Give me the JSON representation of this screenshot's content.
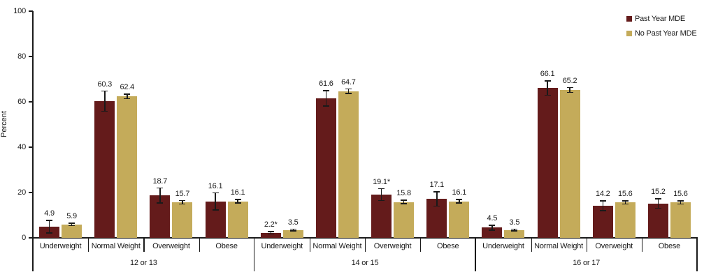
{
  "chart_data": {
    "type": "bar",
    "title": "",
    "ylabel": "Percent",
    "ylim": [
      0,
      100
    ],
    "yticks": [
      0,
      20,
      40,
      60,
      80,
      100
    ],
    "grid": false,
    "legend_position": "top-right",
    "colors": {
      "past_year_mde": "#641b1b",
      "no_past_year_mde": "#c4ab5a",
      "axis": "#1a1a1a"
    },
    "series_meta": [
      {
        "name": "Past Year MDE",
        "color": "#641b1b"
      },
      {
        "name": "No Past Year MDE",
        "color": "#c4ab5a"
      }
    ],
    "group_categories": [
      "Underweight",
      "Normal Weight",
      "Overweight",
      "Obese"
    ],
    "groups": [
      {
        "label": "12 or 13",
        "categories": [
          "Underweight",
          "Normal Weight",
          "Overweight",
          "Obese"
        ],
        "series": [
          {
            "name": "Past Year MDE",
            "values": [
              4.9,
              60.3,
              18.7,
              16.1
            ],
            "labels": [
              "4.9",
              "60.3",
              "18.7",
              "16.1"
            ],
            "errors": [
              3.0,
              4.7,
              3.5,
              4.0
            ]
          },
          {
            "name": "No Past Year MDE",
            "values": [
              5.9,
              62.4,
              15.7,
              16.1
            ],
            "labels": [
              "5.9",
              "62.4",
              "15.7",
              "16.1"
            ],
            "errors": [
              0.8,
              1.2,
              1.0,
              1.0
            ]
          }
        ]
      },
      {
        "label": "14 or 15",
        "categories": [
          "Underweight",
          "Normal Weight",
          "Overweight",
          "Obese"
        ],
        "series": [
          {
            "name": "Past Year MDE",
            "values": [
              2.2,
              61.6,
              19.1,
              17.1
            ],
            "labels": [
              "2.2*",
              "61.6",
              "19.1*",
              "17.1"
            ],
            "errors": [
              0.8,
              3.6,
              2.8,
              3.4
            ]
          },
          {
            "name": "No Past Year MDE",
            "values": [
              3.5,
              64.7,
              15.8,
              16.1
            ],
            "labels": [
              "3.5",
              "64.7",
              "15.8",
              "16.1"
            ],
            "errors": [
              0.6,
              1.3,
              1.0,
              1.0
            ]
          }
        ]
      },
      {
        "label": "16 or 17",
        "categories": [
          "Underweight",
          "Normal Weight",
          "Overweight",
          "Obese"
        ],
        "series": [
          {
            "name": "Past Year MDE",
            "values": [
              4.5,
              66.1,
              14.2,
              15.2
            ],
            "labels": [
              "4.5",
              "66.1",
              "14.2",
              "15.2"
            ],
            "errors": [
              1.3,
              3.4,
              2.4,
              2.3
            ]
          },
          {
            "name": "No Past Year MDE",
            "values": [
              3.5,
              65.2,
              15.6,
              15.6
            ],
            "labels": [
              "3.5",
              "65.2",
              "15.6",
              "15.6"
            ],
            "errors": [
              0.6,
              1.3,
              0.9,
              0.9
            ]
          }
        ]
      }
    ]
  }
}
